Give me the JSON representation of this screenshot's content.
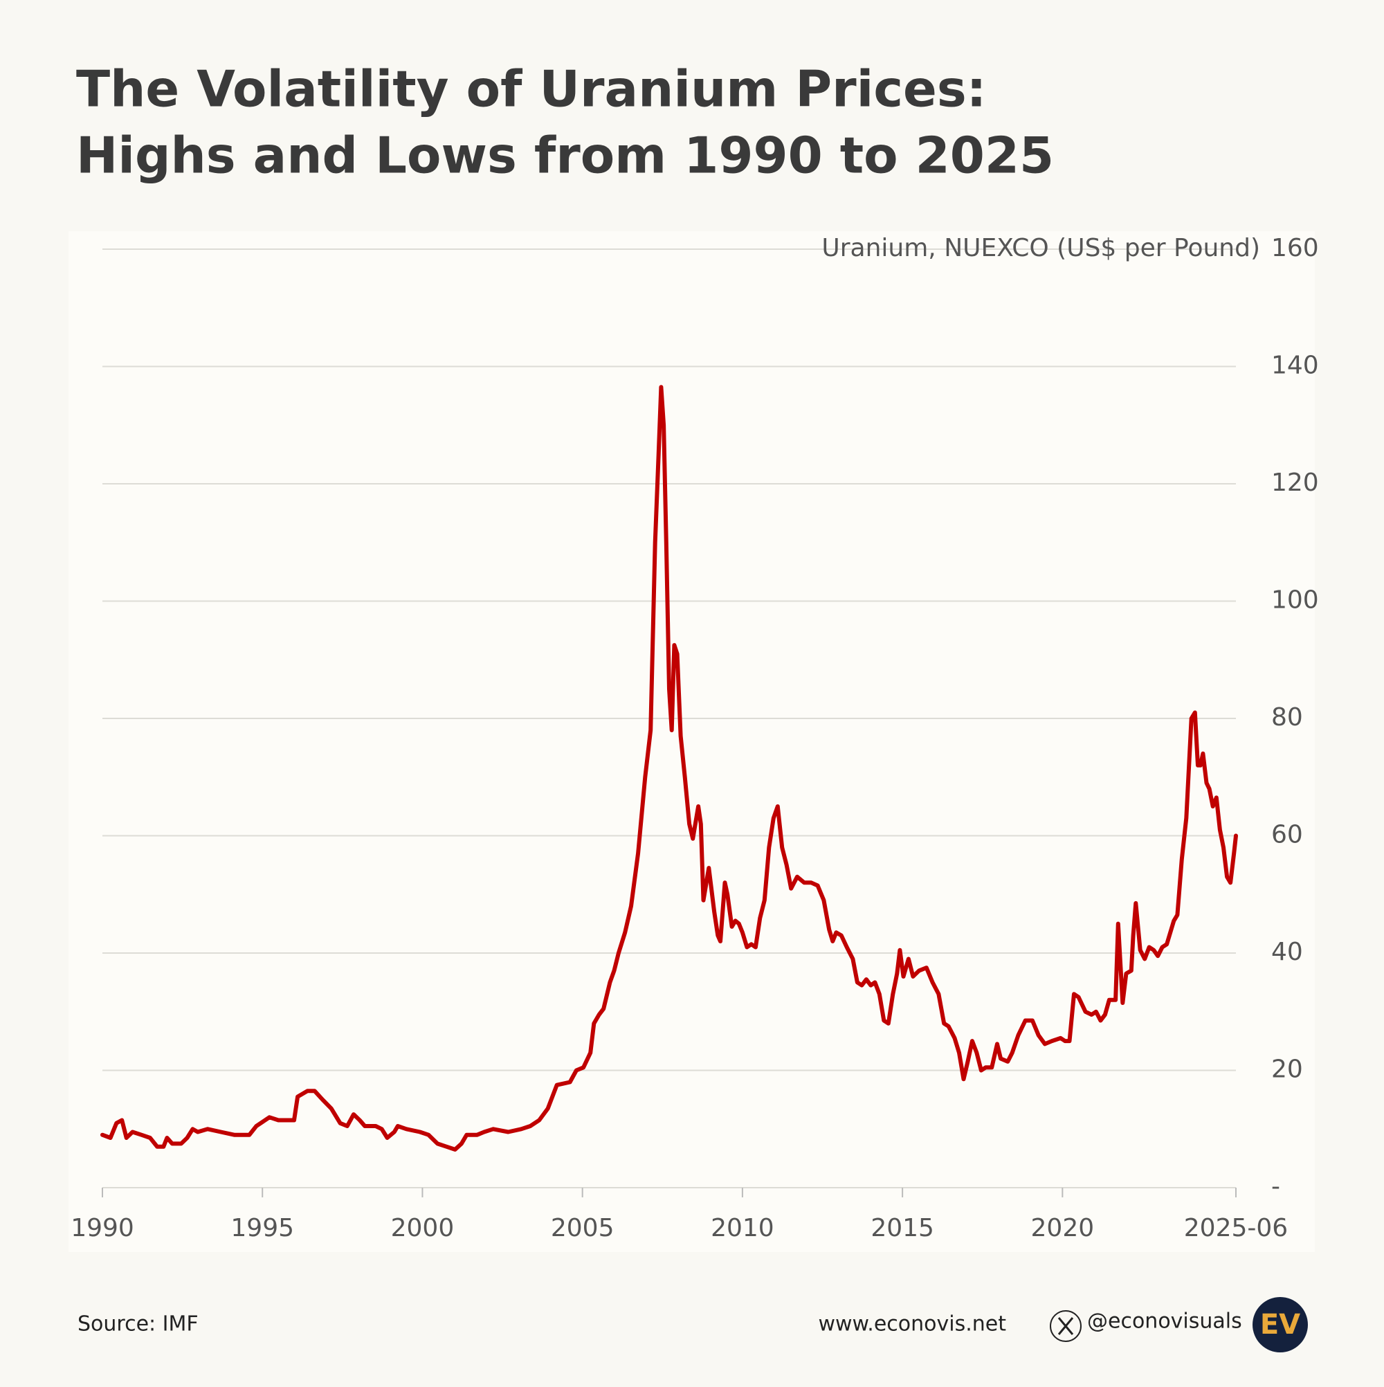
{
  "chart_data": {
    "type": "line",
    "title": [
      "The Volatility of Uranium Prices:",
      "Highs and Lows from 1990 to 2025"
    ],
    "y_axis_label": "Uranium, NUEXCO (US$ per Pound)",
    "source": "Source: IMF",
    "website": "www.econovis.net",
    "handle": "@econovisuals",
    "logo": "EV",
    "color": "#c00000",
    "grid": true,
    "xlim": [
      1990,
      2025.42
    ],
    "xticks": [
      1990,
      1995,
      2000,
      2005,
      2010,
      2015,
      2020,
      {
        "value": 2025.42,
        "label": "2025-06"
      }
    ],
    "ylim": [
      0,
      160
    ],
    "yticks": [
      {
        "value": 0,
        "label": "-"
      },
      20,
      40,
      60,
      80,
      100,
      120,
      140,
      160
    ],
    "x": [
      1990.0,
      1990.25,
      1990.44,
      1990.61,
      1990.75,
      1990.94,
      1991.22,
      1991.49,
      1991.71,
      1991.91,
      1992.02,
      1992.18,
      1992.46,
      1992.65,
      1992.82,
      1992.98,
      1993.29,
      1993.7,
      1994.12,
      1994.59,
      1994.81,
      1995.22,
      1995.5,
      1995.99,
      1996.1,
      1996.41,
      1996.63,
      1996.88,
      1997.15,
      1997.43,
      1997.65,
      1997.85,
      1998.04,
      1998.2,
      1998.54,
      1998.73,
      1998.9,
      1999.12,
      1999.23,
      1999.5,
      1999.92,
      2000.19,
      2000.47,
      2000.75,
      2001.02,
      2001.22,
      2001.38,
      2001.71,
      2001.93,
      2002.21,
      2002.68,
      2003.09,
      2003.37,
      2003.65,
      2003.92,
      2004.2,
      2004.61,
      2004.81,
      2005.03,
      2005.25,
      2005.36,
      2005.52,
      2005.66,
      2005.86,
      2005.99,
      2006.13,
      2006.33,
      2006.52,
      2006.74,
      2006.96,
      2007.13,
      2007.27,
      2007.38,
      2007.46,
      2007.54,
      2007.62,
      2007.71,
      2007.79,
      2007.87,
      2007.96,
      2008.07,
      2008.2,
      2008.34,
      2008.45,
      2008.62,
      2008.7,
      2008.78,
      2008.95,
      2009.12,
      2009.23,
      2009.31,
      2009.45,
      2009.53,
      2009.67,
      2009.78,
      2009.89,
      2010.0,
      2010.14,
      2010.28,
      2010.41,
      2010.55,
      2010.69,
      2010.83,
      2010.97,
      2011.1,
      2011.24,
      2011.38,
      2011.52,
      2011.71,
      2011.93,
      2012.15,
      2012.35,
      2012.54,
      2012.71,
      2012.82,
      2012.93,
      2013.09,
      2013.26,
      2013.45,
      2013.59,
      2013.73,
      2013.87,
      2014.01,
      2014.14,
      2014.28,
      2014.42,
      2014.56,
      2014.7,
      2014.83,
      2014.92,
      2015.03,
      2015.19,
      2015.33,
      2015.52,
      2015.75,
      2015.94,
      2016.13,
      2016.3,
      2016.44,
      2016.63,
      2016.77,
      2016.91,
      2017.04,
      2017.18,
      2017.32,
      2017.46,
      2017.6,
      2017.79,
      2017.96,
      2018.07,
      2018.29,
      2018.43,
      2018.62,
      2018.84,
      2019.06,
      2019.25,
      2019.45,
      2019.67,
      2019.94,
      2020.08,
      2020.22,
      2020.36,
      2020.5,
      2020.72,
      2020.91,
      2021.05,
      2021.19,
      2021.33,
      2021.46,
      2021.66,
      2021.74,
      2021.88,
      2021.99,
      2022.15,
      2022.21,
      2022.29,
      2022.43,
      2022.57,
      2022.71,
      2022.85,
      2022.98,
      2023.12,
      2023.26,
      2023.48,
      2023.59,
      2023.73,
      2023.87,
      2024.03,
      2024.14,
      2024.23,
      2024.31,
      2024.39,
      2024.5,
      2024.59,
      2024.7,
      2024.81,
      2024.92,
      2025.03,
      2025.14,
      2025.25,
      2025.36,
      2025.42
    ],
    "values": [
      9,
      8.5,
      11,
      11.5,
      8.5,
      9.5,
      9,
      8.5,
      7,
      7,
      8.5,
      7.5,
      7.5,
      8.5,
      10,
      9.5,
      10,
      9.5,
      9,
      9,
      10.5,
      12,
      11.5,
      11.5,
      15.5,
      16.5,
      16.5,
      15,
      13.5,
      11,
      10.5,
      12.5,
      11.5,
      10.5,
      10.5,
      10,
      8.5,
      9.5,
      10.5,
      10,
      9.5,
      9,
      7.5,
      7,
      6.5,
      7.5,
      9,
      9,
      9.5,
      10,
      9.5,
      10,
      10.5,
      11.5,
      13.5,
      17.5,
      18,
      20,
      20.5,
      23,
      28,
      29.5,
      30.5,
      35,
      37,
      40,
      43.5,
      48,
      57,
      70,
      78,
      110,
      125,
      136.5,
      130,
      110,
      85,
      78,
      92.5,
      91,
      77,
      70,
      62,
      59.5,
      65,
      62,
      49,
      54.5,
      47,
      43,
      42,
      52,
      50,
      44.5,
      45.5,
      45,
      43.5,
      41,
      41.5,
      41,
      46,
      49,
      58,
      63,
      65,
      58,
      55,
      51,
      53,
      52,
      52,
      51.5,
      49,
      44,
      42,
      43.5,
      43,
      41,
      39,
      35,
      34.5,
      35.5,
      34.5,
      35,
      33,
      28.5,
      28,
      33,
      36.5,
      40.5,
      36,
      39,
      36,
      37,
      37.5,
      35,
      33,
      28,
      27.5,
      25.5,
      23,
      18.5,
      21.5,
      25,
      23,
      20,
      20.5,
      20.5,
      24.5,
      22,
      21.5,
      23,
      26,
      28.5,
      28.5,
      26,
      24.5,
      25,
      25.5,
      25,
      25,
      33,
      32.5,
      30,
      29.5,
      30,
      28.5,
      29.5,
      32,
      32,
      45,
      31.5,
      36.5,
      37,
      43,
      48.5,
      40.5,
      39,
      41,
      40.5,
      39.5,
      41,
      41.5,
      45.5,
      46.5,
      56,
      63,
      80,
      81,
      72,
      72,
      74,
      69,
      68,
      65,
      66.5,
      61,
      58,
      53,
      52,
      57,
      60
    ]
  }
}
